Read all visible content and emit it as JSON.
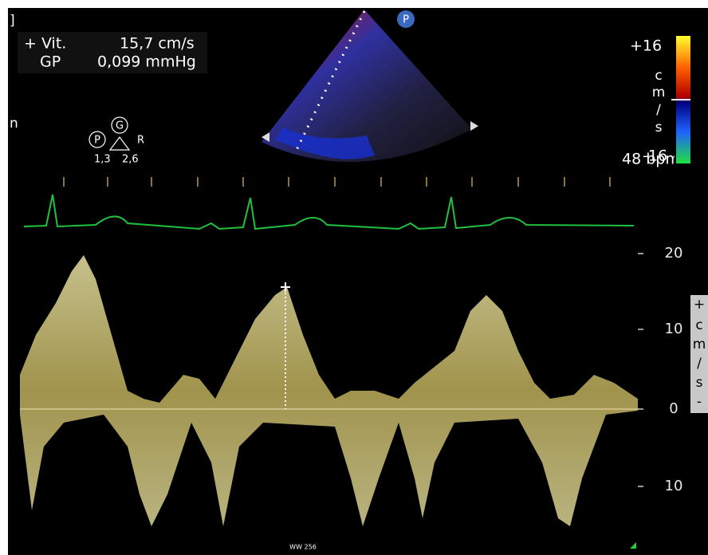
{
  "header_marker": "]",
  "left_marker": "n",
  "measurement": {
    "rows": [
      [
        "+ Vit.",
        "15,7 cm/s"
      ],
      [
        "GP",
        "0,099 mmHg"
      ]
    ]
  },
  "probe_badge": "P",
  "angle_icon": {
    "p": "P",
    "g": "G",
    "r": "R",
    "values": [
      "1,3",
      "2,6"
    ]
  },
  "color_scale": {
    "max": "+16",
    "unit": [
      "c",
      "m",
      "/",
      "s"
    ],
    "min": "-16",
    "rate": "48 bpm"
  },
  "velocity_scale": {
    "ticks": [
      "20",
      "10",
      "0",
      "10"
    ],
    "unit": [
      "+",
      "c",
      "m",
      "/",
      "s",
      "-"
    ]
  },
  "footer": "WW 256"
}
